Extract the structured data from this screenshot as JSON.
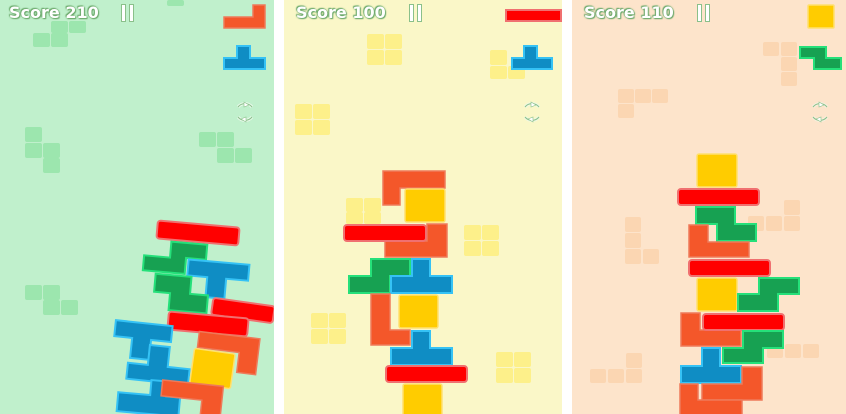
{
  "colors": {
    "red": "#ff0000",
    "orange": "#f4572a",
    "yellow": "#ffcc00",
    "blue": "#0f8dc4",
    "green": "#17a152"
  },
  "panels": [
    {
      "score_text": "Score 210",
      "background": "#c0f0cc",
      "next_pieces": [
        "orange-L",
        "blue-T"
      ],
      "icons": [
        "pause-icon",
        "rotate-icon"
      ]
    },
    {
      "score_text": "Score 100",
      "background": "#faf7c8",
      "next_pieces": [
        "red-I",
        "blue-T"
      ],
      "icons": [
        "pause-icon",
        "rotate-icon"
      ]
    },
    {
      "score_text": "Score 110",
      "background": "#fde4cb",
      "next_pieces": [
        "yellow-O",
        "green-Z"
      ],
      "icons": [
        "pause-icon",
        "rotate-icon"
      ]
    }
  ]
}
